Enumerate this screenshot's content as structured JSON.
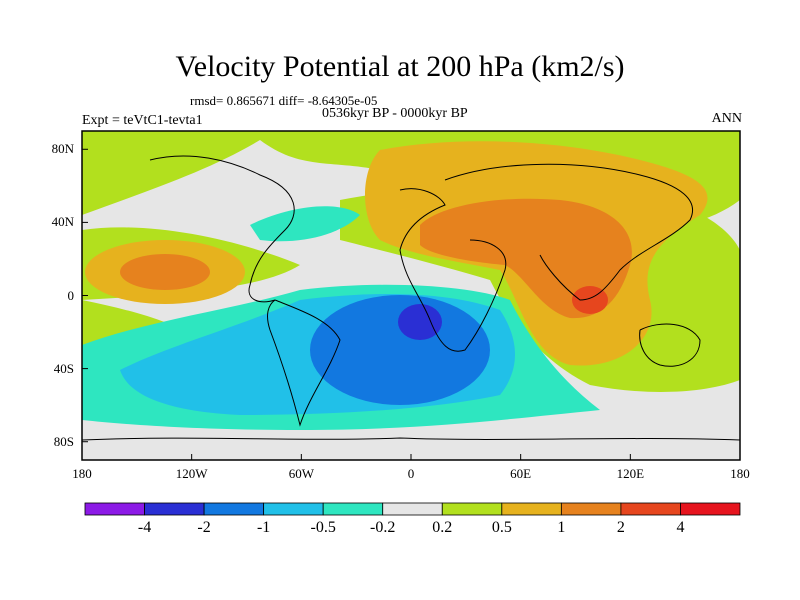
{
  "title": "Velocity Potential at 200 hPa (km2/s)",
  "stats_line": "rmsd= 0.865671 diff= -8.64305e-05",
  "experiment": "Expt = teVtC1-tevta1",
  "period": "0536kyr BP - 0000kyr BP",
  "season": "ANN",
  "map": {
    "lat_range": [
      -90,
      90
    ],
    "lon_range": [
      -180,
      180
    ],
    "lat_ticks": [
      "80N",
      "40N",
      "0",
      "40S",
      "80S"
    ],
    "lon_ticks": [
      "180",
      "120W",
      "60W",
      "0",
      "60E",
      "120E",
      "180"
    ]
  },
  "colorbar": {
    "labels": [
      "-4",
      "-2",
      "-1",
      "-0.5",
      "-0.2",
      "0.2",
      "0.5",
      "1",
      "2",
      "4"
    ],
    "colors": [
      "#8c1ae6",
      "#2a2fd4",
      "#1278e0",
      "#21c0e8",
      "#2ee6c0",
      "#e6e6e6",
      "#b2e01e",
      "#e6b21e",
      "#e6821e",
      "#e6461e",
      "#e6141e"
    ]
  }
}
